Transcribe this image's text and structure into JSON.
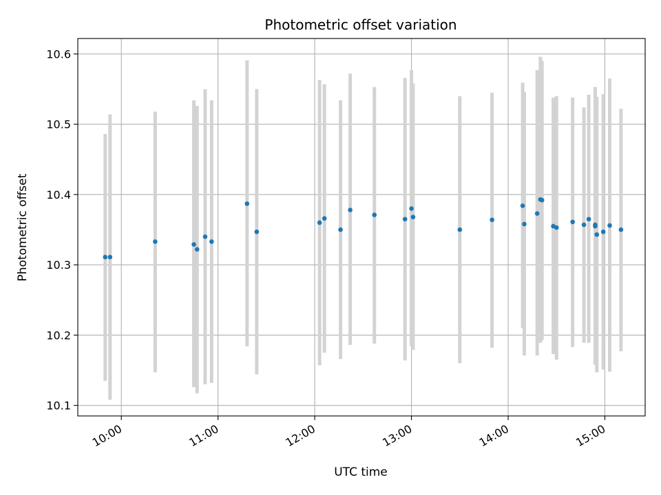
{
  "chart_data": {
    "type": "scatter",
    "title": "Photometric offset variation",
    "xlabel": "UTC time",
    "ylabel": "Photometric offset",
    "x_axis_kind": "time",
    "xlim": [
      "09:33",
      "15:25"
    ],
    "ylim": [
      10.085,
      10.622
    ],
    "x_ticks": [
      "10:00",
      "11:00",
      "12:00",
      "13:00",
      "14:00",
      "15:00"
    ],
    "y_ticks": [
      10.1,
      10.2,
      10.3,
      10.4,
      10.5,
      10.6
    ],
    "y_tick_labels": [
      "10.1",
      "10.2",
      "10.3",
      "10.4",
      "10.5",
      "10.6"
    ],
    "grid": true,
    "legend": "none",
    "point_color": "#1f77b4",
    "errorbar_color": "#d3d3d3",
    "points": [
      {
        "x": "09:50",
        "y": 10.311,
        "ylow": 10.135,
        "yhigh": 10.486
      },
      {
        "x": "09:53",
        "y": 10.311,
        "ylow": 10.108,
        "yhigh": 10.514
      },
      {
        "x": "10:21",
        "y": 10.333,
        "ylow": 10.147,
        "yhigh": 10.518
      },
      {
        "x": "10:45",
        "y": 10.329,
        "ylow": 10.126,
        "yhigh": 10.534
      },
      {
        "x": "10:47",
        "y": 10.322,
        "ylow": 10.117,
        "yhigh": 10.526
      },
      {
        "x": "10:52",
        "y": 10.34,
        "ylow": 10.13,
        "yhigh": 10.55
      },
      {
        "x": "10:56",
        "y": 10.333,
        "ylow": 10.132,
        "yhigh": 10.534
      },
      {
        "x": "11:18",
        "y": 10.387,
        "ylow": 10.184,
        "yhigh": 10.591
      },
      {
        "x": "11:24",
        "y": 10.347,
        "ylow": 10.144,
        "yhigh": 10.55
      },
      {
        "x": "12:03",
        "y": 10.36,
        "ylow": 10.157,
        "yhigh": 10.563
      },
      {
        "x": "12:06",
        "y": 10.366,
        "ylow": 10.175,
        "yhigh": 10.557
      },
      {
        "x": "12:16",
        "y": 10.35,
        "ylow": 10.166,
        "yhigh": 10.534
      },
      {
        "x": "12:22",
        "y": 10.378,
        "ylow": 10.186,
        "yhigh": 10.572
      },
      {
        "x": "12:37",
        "y": 10.371,
        "ylow": 10.188,
        "yhigh": 10.553
      },
      {
        "x": "12:56",
        "y": 10.365,
        "ylow": 10.164,
        "yhigh": 10.566
      },
      {
        "x": "13:00",
        "y": 10.38,
        "ylow": 10.184,
        "yhigh": 10.577
      },
      {
        "x": "13:01",
        "y": 10.368,
        "ylow": 10.179,
        "yhigh": 10.558
      },
      {
        "x": "13:30",
        "y": 10.35,
        "ylow": 10.16,
        "yhigh": 10.54
      },
      {
        "x": "13:50",
        "y": 10.364,
        "ylow": 10.182,
        "yhigh": 10.545
      },
      {
        "x": "14:09",
        "y": 10.384,
        "ylow": 10.21,
        "yhigh": 10.559
      },
      {
        "x": "14:10",
        "y": 10.358,
        "ylow": 10.171,
        "yhigh": 10.546
      },
      {
        "x": "14:18",
        "y": 10.373,
        "ylow": 10.171,
        "yhigh": 10.577
      },
      {
        "x": "14:20",
        "y": 10.393,
        "ylow": 10.189,
        "yhigh": 10.596
      },
      {
        "x": "14:21",
        "y": 10.392,
        "ylow": 10.193,
        "yhigh": 10.59
      },
      {
        "x": "14:28",
        "y": 10.355,
        "ylow": 10.173,
        "yhigh": 10.538
      },
      {
        "x": "14:30",
        "y": 10.353,
        "ylow": 10.165,
        "yhigh": 10.54
      },
      {
        "x": "14:40",
        "y": 10.361,
        "ylow": 10.183,
        "yhigh": 10.538
      },
      {
        "x": "14:47",
        "y": 10.357,
        "ylow": 10.189,
        "yhigh": 10.524
      },
      {
        "x": "14:50",
        "y": 10.365,
        "ylow": 10.189,
        "yhigh": 10.542
      },
      {
        "x": "14:54",
        "y": 10.357,
        "ylow": 10.158,
        "yhigh": 10.553
      },
      {
        "x": "14:54",
        "y": 10.355,
        "ylow": 10.158,
        "yhigh": 10.553
      },
      {
        "x": "14:55",
        "y": 10.343,
        "ylow": 10.147,
        "yhigh": 10.539
      },
      {
        "x": "14:59",
        "y": 10.347,
        "ylow": 10.151,
        "yhigh": 10.543
      },
      {
        "x": "15:03",
        "y": 10.356,
        "ylow": 10.148,
        "yhigh": 10.565
      },
      {
        "x": "15:10",
        "y": 10.35,
        "ylow": 10.177,
        "yhigh": 10.522
      }
    ]
  }
}
